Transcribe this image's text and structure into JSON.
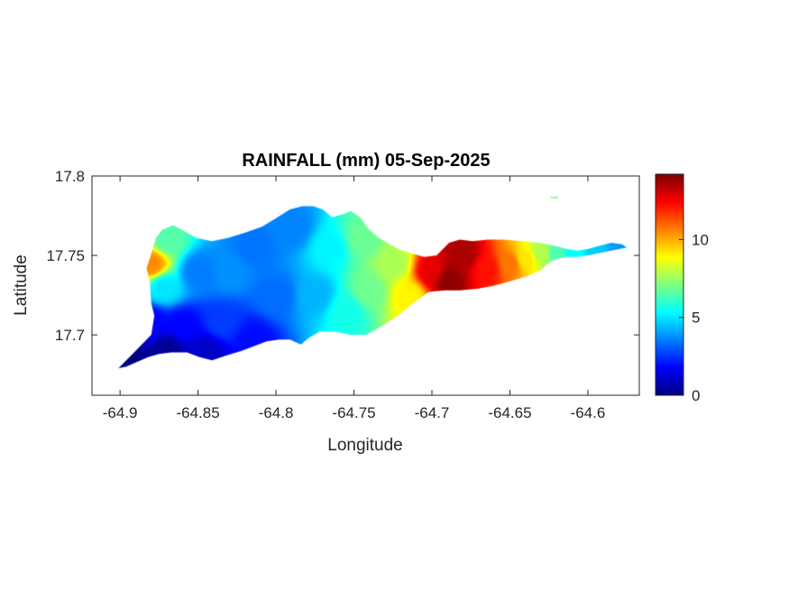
{
  "chart_data": {
    "type": "heatmap",
    "title": "RAINFALL (mm) 05-Sep-2025",
    "xlabel": "Longitude",
    "ylabel": "Latitude",
    "xlim": [
      -64.918,
      -64.567
    ],
    "ylim": [
      17.662,
      17.8
    ],
    "x_ticks": [
      {
        "value": -64.9,
        "label": "-64.9"
      },
      {
        "value": -64.85,
        "label": "-64.85"
      },
      {
        "value": -64.8,
        "label": "-64.8"
      },
      {
        "value": -64.75,
        "label": "-64.75"
      },
      {
        "value": -64.7,
        "label": "-64.7"
      },
      {
        "value": -64.65,
        "label": "-64.65"
      },
      {
        "value": -64.6,
        "label": "-64.6"
      }
    ],
    "y_ticks": [
      {
        "value": 17.7,
        "label": "17.7"
      },
      {
        "value": 17.75,
        "label": "17.75"
      },
      {
        "value": 17.8,
        "label": "17.8"
      }
    ],
    "colorbar": {
      "colormap": "jet",
      "limits": [
        0,
        14.2
      ],
      "ticks": [
        {
          "value": 0,
          "label": "0"
        },
        {
          "value": 5,
          "label": "5"
        },
        {
          "value": 10,
          "label": "10"
        }
      ]
    },
    "grid": false,
    "island_outline": [
      [
        -64.9,
        17.68
      ],
      [
        -64.89,
        17.69
      ],
      [
        -64.88,
        17.7
      ],
      [
        -64.878,
        17.712
      ],
      [
        -64.88,
        17.72
      ],
      [
        -64.881,
        17.734
      ],
      [
        -64.883,
        17.742
      ],
      [
        -64.88,
        17.751
      ],
      [
        -64.877,
        17.761
      ],
      [
        -64.873,
        17.766
      ],
      [
        -64.866,
        17.769
      ],
      [
        -64.86,
        17.766
      ],
      [
        -64.851,
        17.761
      ],
      [
        -64.841,
        17.759
      ],
      [
        -64.831,
        17.761
      ],
      [
        -64.821,
        17.764
      ],
      [
        -64.809,
        17.768
      ],
      [
        -64.799,
        17.774
      ],
      [
        -64.791,
        17.779
      ],
      [
        -64.783,
        17.781
      ],
      [
        -64.776,
        17.781
      ],
      [
        -64.77,
        17.779
      ],
      [
        -64.764,
        17.774
      ],
      [
        -64.757,
        17.776
      ],
      [
        -64.752,
        17.778
      ],
      [
        -64.746,
        17.774
      ],
      [
        -64.741,
        17.767
      ],
      [
        -64.734,
        17.761
      ],
      [
        -64.727,
        17.757
      ],
      [
        -64.719,
        17.753
      ],
      [
        -64.712,
        17.751
      ],
      [
        -64.705,
        17.749
      ],
      [
        -64.697,
        17.75
      ],
      [
        -64.689,
        17.758
      ],
      [
        -64.682,
        17.76
      ],
      [
        -64.674,
        17.759
      ],
      [
        -64.664,
        17.76
      ],
      [
        -64.654,
        17.76
      ],
      [
        -64.642,
        17.759
      ],
      [
        -64.631,
        17.758
      ],
      [
        -64.621,
        17.756
      ],
      [
        -64.613,
        17.754
      ],
      [
        -64.607,
        17.753
      ],
      [
        -64.6,
        17.754
      ],
      [
        -64.593,
        17.756
      ],
      [
        -64.585,
        17.758
      ],
      [
        -64.578,
        17.757
      ],
      [
        -64.575,
        17.755
      ],
      [
        -64.58,
        17.754
      ],
      [
        -64.59,
        17.752
      ],
      [
        -64.6,
        17.75
      ],
      [
        -64.607,
        17.749
      ],
      [
        -64.614,
        17.749
      ],
      [
        -64.619,
        17.748
      ],
      [
        -64.624,
        17.746
      ],
      [
        -64.63,
        17.741
      ],
      [
        -64.639,
        17.737
      ],
      [
        -64.649,
        17.734
      ],
      [
        -64.66,
        17.731
      ],
      [
        -64.671,
        17.729
      ],
      [
        -64.682,
        17.728
      ],
      [
        -64.692,
        17.728
      ],
      [
        -64.702,
        17.727
      ],
      [
        -64.712,
        17.72
      ],
      [
        -64.722,
        17.712
      ],
      [
        -64.733,
        17.705
      ],
      [
        -64.742,
        17.7
      ],
      [
        -64.752,
        17.7
      ],
      [
        -64.762,
        17.702
      ],
      [
        -64.772,
        17.702
      ],
      [
        -64.779,
        17.698
      ],
      [
        -64.784,
        17.694
      ],
      [
        -64.791,
        17.697
      ],
      [
        -64.798,
        17.697
      ],
      [
        -64.806,
        17.696
      ],
      [
        -64.814,
        17.693
      ],
      [
        -64.822,
        17.69
      ],
      [
        -64.832,
        17.687
      ],
      [
        -64.841,
        17.684
      ],
      [
        -64.849,
        17.686
      ],
      [
        -64.857,
        17.689
      ],
      [
        -64.867,
        17.689
      ],
      [
        -64.875,
        17.688
      ],
      [
        -64.882,
        17.686
      ],
      [
        -64.889,
        17.683
      ],
      [
        -64.896,
        17.68
      ],
      [
        -64.901,
        17.679
      ]
    ],
    "islet": [
      [
        -64.624,
        17.787
      ],
      [
        -64.619,
        17.787
      ],
      [
        -64.619,
        17.786
      ],
      [
        -64.624,
        17.786
      ]
    ],
    "rainfall_stations": [
      {
        "lon": -64.895,
        "lat": 17.683,
        "value": 0.0
      },
      {
        "lon": -64.87,
        "lat": 17.69,
        "value": 0.3
      },
      {
        "lon": -64.845,
        "lat": 17.69,
        "value": 1.0
      },
      {
        "lon": -64.815,
        "lat": 17.697,
        "value": 1.9
      },
      {
        "lon": -64.88,
        "lat": 17.708,
        "value": 1.8
      },
      {
        "lon": -64.86,
        "lat": 17.706,
        "value": 1.8
      },
      {
        "lon": -64.835,
        "lat": 17.708,
        "value": 2.6
      },
      {
        "lon": -64.88,
        "lat": 17.745,
        "value": 10.5
      },
      {
        "lon": -64.87,
        "lat": 17.76,
        "value": 6.5
      },
      {
        "lon": -64.872,
        "lat": 17.73,
        "value": 5.0
      },
      {
        "lon": -64.85,
        "lat": 17.74,
        "value": 3.5
      },
      {
        "lon": -64.83,
        "lat": 17.74,
        "value": 3.8
      },
      {
        "lon": -64.815,
        "lat": 17.755,
        "value": 3.4
      },
      {
        "lon": -64.8,
        "lat": 17.725,
        "value": 3.3
      },
      {
        "lon": -64.79,
        "lat": 17.768,
        "value": 3.6
      },
      {
        "lon": -64.775,
        "lat": 17.725,
        "value": 4.3
      },
      {
        "lon": -64.765,
        "lat": 17.755,
        "value": 5.2
      },
      {
        "lon": -64.755,
        "lat": 17.715,
        "value": 5.6
      },
      {
        "lon": -64.745,
        "lat": 17.76,
        "value": 6.8
      },
      {
        "lon": -64.74,
        "lat": 17.728,
        "value": 6.9
      },
      {
        "lon": -64.725,
        "lat": 17.745,
        "value": 7.7
      },
      {
        "lon": -64.715,
        "lat": 17.725,
        "value": 9.0
      },
      {
        "lon": -64.7,
        "lat": 17.74,
        "value": 12.8
      },
      {
        "lon": -64.69,
        "lat": 17.735,
        "value": 14.0
      },
      {
        "lon": -64.68,
        "lat": 17.75,
        "value": 13.6
      },
      {
        "lon": -64.665,
        "lat": 17.742,
        "value": 12.2
      },
      {
        "lon": -64.65,
        "lat": 17.745,
        "value": 10.8
      },
      {
        "lon": -64.64,
        "lat": 17.748,
        "value": 9.2
      },
      {
        "lon": -64.63,
        "lat": 17.752,
        "value": 7.8
      },
      {
        "lon": -64.62,
        "lat": 17.752,
        "value": 6.4
      },
      {
        "lon": -64.61,
        "lat": 17.752,
        "value": 5.4
      },
      {
        "lon": -64.595,
        "lat": 17.753,
        "value": 4.6
      },
      {
        "lon": -64.58,
        "lat": 17.755,
        "value": 3.9
      }
    ]
  }
}
